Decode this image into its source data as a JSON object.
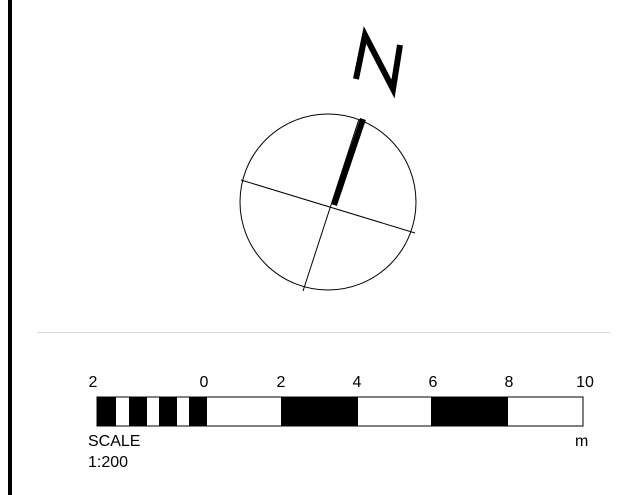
{
  "north_arrow": {
    "letter": "N",
    "icon": "north-arrow-icon"
  },
  "scale_bar": {
    "tick_labels": [
      "2",
      "0",
      "2",
      "4",
      "6",
      "8",
      "10"
    ],
    "unit": "m",
    "caption": "SCALE",
    "ratio": "1:200",
    "colors": {
      "filled": "#000000",
      "empty": "#ffffff"
    }
  }
}
